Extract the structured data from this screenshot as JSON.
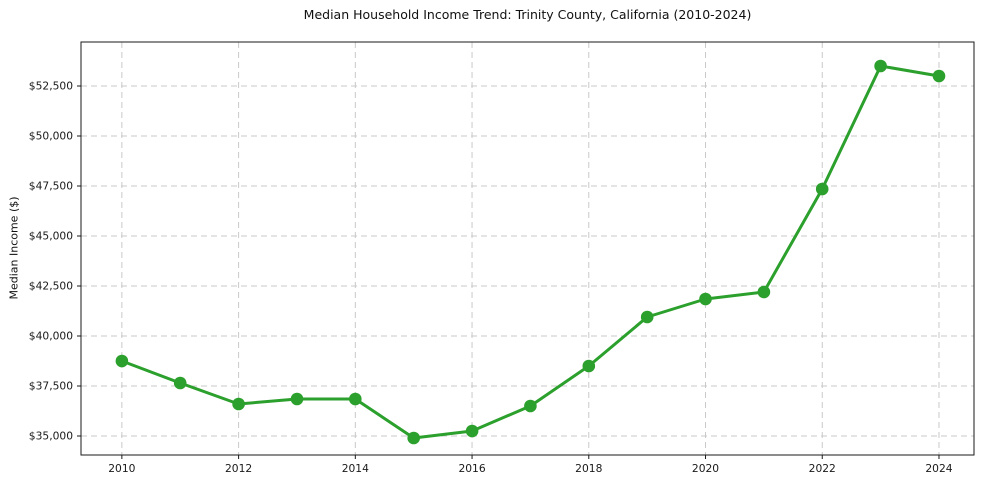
{
  "chart_data": {
    "type": "line",
    "title": "Median Household Income Trend: Trinity County, California (2010-2024)",
    "xlabel": "",
    "ylabel": "Median Income ($)",
    "series_name": "Median Household Income",
    "x": [
      2010,
      2011,
      2012,
      2013,
      2014,
      2015,
      2016,
      2017,
      2018,
      2019,
      2020,
      2021,
      2022,
      2023,
      2024
    ],
    "values": [
      38750,
      37650,
      36600,
      36850,
      36850,
      34900,
      35250,
      36500,
      38500,
      40950,
      41850,
      42200,
      47350,
      53500,
      53000
    ],
    "x_ticks": [
      2010,
      2012,
      2014,
      2016,
      2018,
      2020,
      2022,
      2024
    ],
    "y_ticks": [
      35000,
      37500,
      40000,
      42500,
      45000,
      47500,
      50000,
      52500
    ],
    "y_tick_labels": [
      "$35,000",
      "$37,500",
      "$40,000",
      "$42,500",
      "$45,000",
      "$47,500",
      "$50,000",
      "$52,500"
    ],
    "xlim": [
      2009.3,
      2024.6
    ],
    "ylim": [
      34050,
      54700
    ],
    "grid": true,
    "legend": "none",
    "line_color": "#2ca02c",
    "marker_color": "#2ca02c",
    "grid_color": "#c9c9c9",
    "axis_color": "#1a1a1a",
    "background_color": "#ffffff"
  }
}
